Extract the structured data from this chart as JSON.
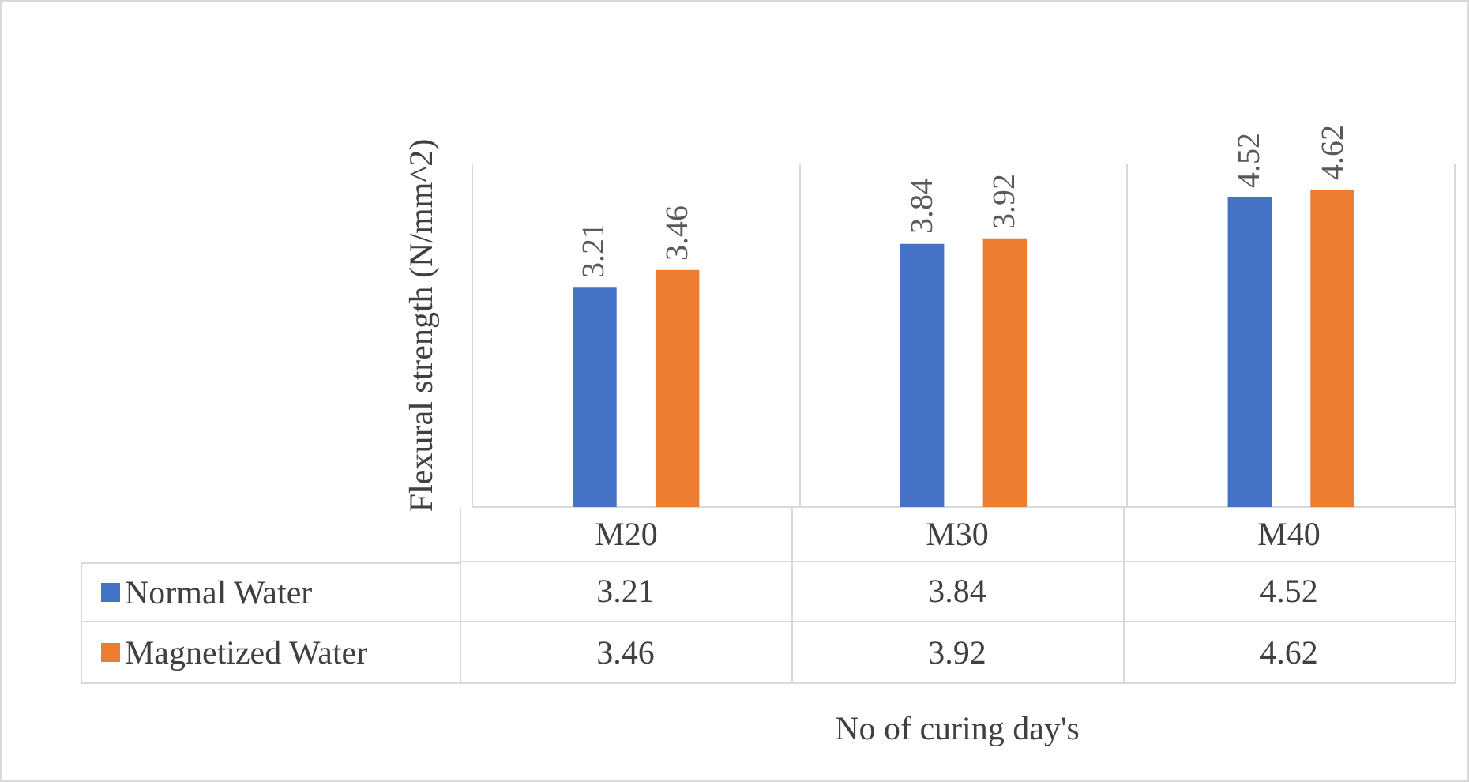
{
  "chart_data": {
    "type": "bar",
    "ylabel": "Flexural strength (N/mm^2)",
    "xlabel": "No of curing day's",
    "categories": [
      "M20",
      "M30",
      "M40"
    ],
    "series": [
      {
        "name": "Normal Water",
        "color": "#4472c4",
        "values": [
          3.21,
          3.84,
          4.52
        ]
      },
      {
        "name": "Magnetized Water",
        "color": "#ed7d31",
        "values": [
          3.46,
          3.92,
          4.62
        ]
      }
    ],
    "annotations": [
      "3.21",
      "3.84",
      "4.52",
      "3.46",
      "3.92",
      "4.62"
    ],
    "ylim": [
      0,
      5
    ],
    "tick_labels": "x",
    "grid": "x",
    "legend": "bottom",
    "data_labels": true
  }
}
